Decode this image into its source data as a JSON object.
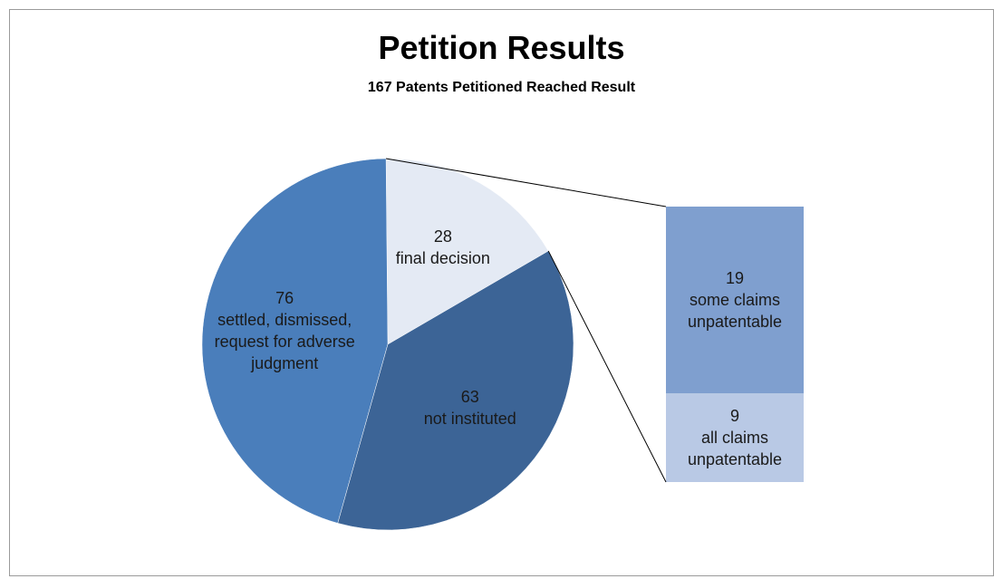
{
  "chart_data": {
    "type": "pie-of-bar",
    "title": "Petition Results",
    "subtitle": "167 Patents Petitioned Reached Result",
    "categories": [
      "final decision",
      "settled, dismissed, request for adverse judgment",
      "not instituted"
    ],
    "values": [
      28,
      76,
      63
    ],
    "colors": [
      "#e4eaf4",
      "#4a7ebb",
      "#3c6496"
    ],
    "bar": {
      "categories": [
        "some claims unpatentable",
        "all claims unpatentable"
      ],
      "values": [
        19,
        9
      ],
      "colors": [
        "#7f9fcf",
        "#b9c9e5"
      ]
    }
  }
}
